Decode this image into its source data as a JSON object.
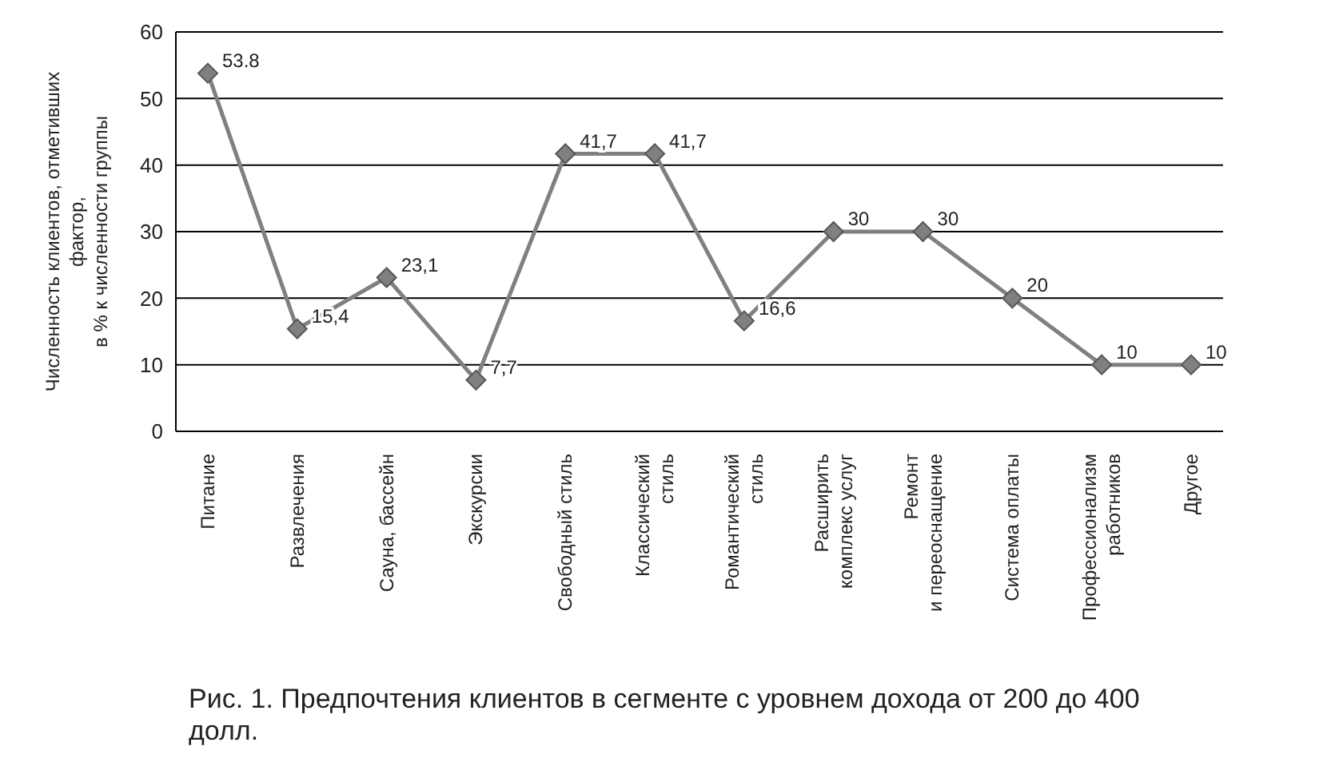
{
  "chart_data": {
    "type": "line",
    "title": "Рис. 1. Предпочтения клиентов в сегменте с уровнем дохода от 200 до 400 долл.",
    "ylabel": "Численность клиентов, отметивших\nфактор,\nв % к численности группы",
    "categories": [
      "Питание",
      "Развлечения",
      "Сауна, бассейн",
      "Экскурсии",
      "Свободный стиль",
      "Классический\nстиль",
      "Романтический\nстиль",
      "Расширить\nкомплекс услуг",
      "Ремонт\nи переоснащение",
      "Система оплаты",
      "Профессионализм\nработников",
      "Другое"
    ],
    "series": [
      {
        "color": "#808080",
        "values": [
          53.8,
          15.4,
          23.1,
          7.7,
          41.7,
          41.7,
          16.6,
          30,
          30,
          20,
          10,
          10
        ],
        "value_labels": [
          "53.8",
          "15,4",
          "23,1",
          "7,7",
          "41,7",
          "41,7",
          "16,6",
          "30",
          "30",
          "20",
          "10",
          "10"
        ]
      }
    ],
    "ylim": [
      0,
      60
    ],
    "yticks": [
      0,
      10,
      20,
      30,
      40,
      50,
      60
    ],
    "grid": "y",
    "marker": "diamond",
    "line_style": "solid"
  }
}
